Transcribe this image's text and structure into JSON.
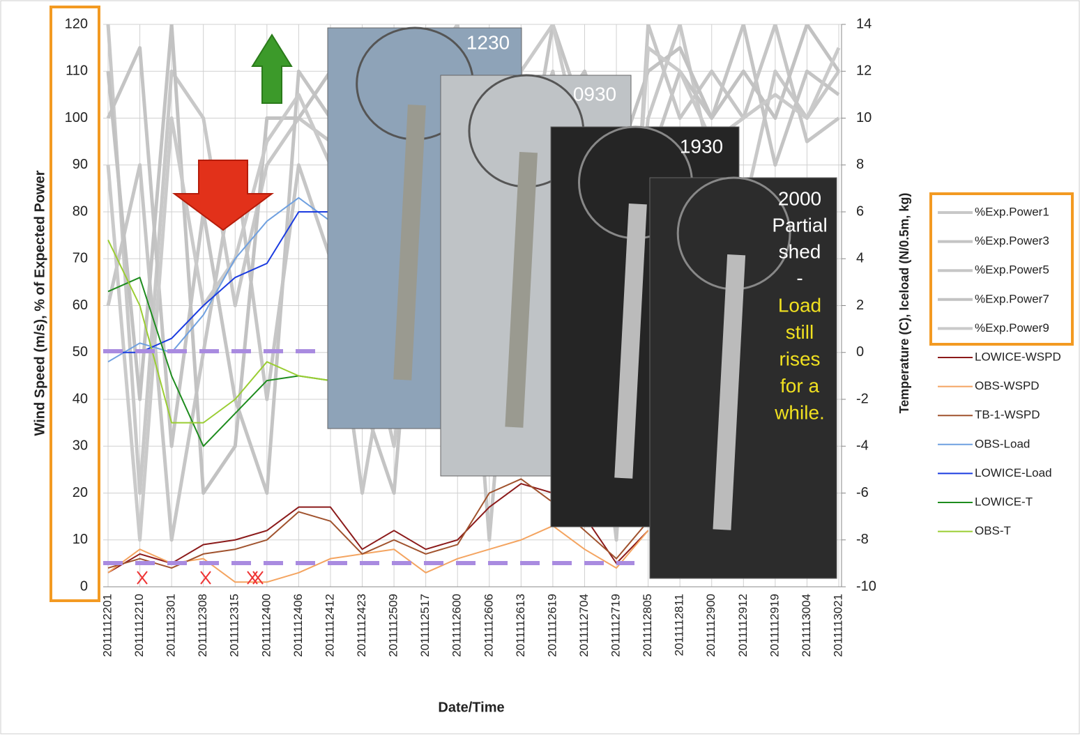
{
  "chart_data": {
    "type": "line",
    "x_label": "Date/Time",
    "y_label": "Wind Speed (m/s), % of Expected Power",
    "y2_label": "Temperature (C), Iceload (N/0.5m, kg)",
    "categories": [
      "2011112201",
      "2011112210",
      "2011112301",
      "2011112308",
      "2011112315",
      "2011112400",
      "2011112406",
      "2011112412",
      "2011112423",
      "2011112509",
      "2011112517",
      "2011112600",
      "2011112606",
      "2011112613",
      "2011112619",
      "2011112704",
      "2011112719",
      "2011112805",
      "2011112811",
      "2011112900",
      "2011112912",
      "2011112919",
      "2011113004",
      "2011113021"
    ],
    "ylim": [
      0,
      120
    ],
    "yticks": [
      0,
      10,
      20,
      30,
      40,
      50,
      60,
      70,
      80,
      90,
      100,
      110,
      120
    ],
    "y2lim": [
      -10,
      14
    ],
    "y2ticks": [
      -10,
      -8,
      -6,
      -4,
      -2,
      0,
      2,
      4,
      6,
      8,
      10,
      12,
      14
    ],
    "grid": true,
    "series": [
      {
        "name": "%Exp.Power1",
        "color": "#c8c8c8",
        "values": [
          120,
          20,
          110,
          100,
          60,
          90,
          100,
          95,
          60,
          30,
          80,
          70,
          50,
          60,
          90,
          80,
          40,
          100,
          120,
          90,
          80,
          110,
          100,
          110
        ]
      },
      {
        "name": "%Exp.Power3",
        "color": "#c4c4c4",
        "values": [
          100,
          115,
          30,
          80,
          40,
          20,
          110,
          100,
          40,
          20,
          100,
          90,
          30,
          80,
          120,
          100,
          60,
          90,
          110,
          100,
          120,
          90,
          110,
          105
        ]
      },
      {
        "name": "%Exp.Power5",
        "color": "#c6c6c6",
        "values": [
          60,
          90,
          10,
          50,
          90,
          40,
          90,
          70,
          20,
          60,
          90,
          100,
          10,
          90,
          110,
          70,
          10,
          120,
          100,
          110,
          100,
          120,
          95,
          100
        ]
      },
      {
        "name": "%Exp.Power7",
        "color": "#c2c2c2",
        "values": [
          110,
          40,
          120,
          20,
          30,
          100,
          100,
          110,
          80,
          50,
          70,
          110,
          40,
          100,
          100,
          110,
          90,
          110,
          115,
          100,
          110,
          100,
          120,
          110
        ]
      },
      {
        "name": "%Exp.Power9",
        "color": "#cacaca",
        "values": [
          90,
          10,
          100,
          60,
          70,
          95,
          105,
          90,
          50,
          100,
          110,
          120,
          60,
          110,
          120,
          90,
          20,
          115,
          110,
          95,
          100,
          105,
          100,
          115
        ]
      },
      {
        "name": "LOWICE-WSPD",
        "color": "#8b1a1a",
        "values": [
          3,
          7,
          5,
          9,
          10,
          12,
          17,
          17,
          8,
          12,
          8,
          10,
          17,
          22,
          20,
          15,
          5,
          12,
          null,
          null,
          null,
          null,
          null,
          null
        ]
      },
      {
        "name": "OBS-WSPD",
        "color": "#f4a460",
        "values": [
          3,
          8,
          5,
          6,
          1,
          1,
          3,
          6,
          7,
          8,
          3,
          6,
          8,
          10,
          13,
          8,
          4,
          12,
          null,
          null,
          null,
          null,
          null,
          null
        ]
      },
      {
        "name": "TB-1-WSPD",
        "color": "#a0522d",
        "values": [
          4,
          6,
          4,
          7,
          8,
          10,
          16,
          14,
          7,
          10,
          7,
          9,
          20,
          23,
          18,
          12,
          6,
          14,
          null,
          null,
          null,
          null,
          null,
          null
        ]
      },
      {
        "name": "OBS-Load",
        "color": "#6fa0e0",
        "axis": "y2",
        "values": [
          -0.4,
          0.4,
          0,
          1.6,
          4,
          5.6,
          6.6,
          5.6,
          null,
          null,
          null,
          null,
          null,
          null,
          null,
          null,
          null,
          null,
          null,
          null,
          null,
          null,
          null,
          null
        ]
      },
      {
        "name": "LOWICE-Load",
        "color": "#1a3be0",
        "axis": "y2",
        "values": [
          0,
          0,
          0.6,
          2,
          3.2,
          3.8,
          6,
          6,
          null,
          null,
          null,
          null,
          null,
          null,
          null,
          null,
          null,
          null,
          null,
          null,
          null,
          null,
          null,
          null
        ]
      },
      {
        "name": "LOWICE-T",
        "color": "#1e8c1e",
        "axis": "y2",
        "values": [
          2.6,
          3.2,
          -1,
          -4,
          -2.6,
          -1.2,
          -1,
          -1.2,
          null,
          null,
          null,
          null,
          null,
          null,
          null,
          null,
          null,
          null,
          null,
          null,
          null,
          null,
          null,
          null
        ]
      },
      {
        "name": "OBS-T",
        "color": "#9acd32",
        "axis": "y2",
        "values": [
          4.8,
          2,
          -3,
          -3,
          -2,
          -0.4,
          -1,
          -1.2,
          null,
          null,
          null,
          null,
          null,
          null,
          null,
          null,
          null,
          null,
          null,
          null,
          null,
          null,
          null,
          null
        ]
      }
    ],
    "photos": [
      {
        "label": "1230"
      },
      {
        "label": "0930"
      },
      {
        "label": "1930"
      },
      {
        "lines": [
          "2000",
          "Partial",
          "shed",
          "-"
        ],
        "highlight": [
          "Load",
          "still",
          "rises",
          "for a",
          "while."
        ]
      }
    ]
  }
}
